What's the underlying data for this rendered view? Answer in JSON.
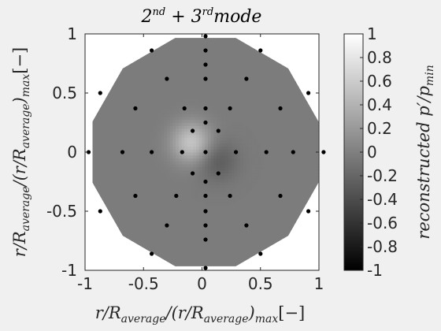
{
  "chart_data": {
    "type": "heatmap",
    "title": "2nd + 3rd mode",
    "title_parts": {
      "a": "2",
      "a_sup": "nd",
      "plus": " + ",
      "b": "3",
      "b_sup": "rd",
      "c": "mode"
    },
    "xlabel": "r/R_average/(r/R_average)_max[−]",
    "ylabel": "r/R_average/(r/R_average)_max[−]",
    "xlabel_parts": {
      "pre": "r/R",
      "sub1": "average",
      "mid": "/(r/R",
      "sub2": "average",
      "post": ")",
      "sub3": "max",
      "unit": "[−]"
    },
    "ylabel_parts": {
      "pre": "r/R",
      "sub1": "average",
      "mid": "/(r/R",
      "sub2": "average",
      "post": ")",
      "sub3": "max",
      "unit": "[−]"
    },
    "colorbar_label": "reconstructed p′/p_min",
    "colorbar_parts": {
      "pre": "reconstructed p′/p",
      "sub": "min"
    },
    "colormap": "gray",
    "xlim": [
      -1,
      1
    ],
    "ylim": [
      -1,
      1
    ],
    "clim": [
      -1,
      1
    ],
    "xticks": [
      -1,
      -0.5,
      0,
      0.5,
      1
    ],
    "xtick_labels": [
      "-1",
      "-0.5",
      "0",
      "0.5",
      "1"
    ],
    "yticks": [
      -1,
      -0.5,
      0,
      0.5,
      1
    ],
    "ytick_labels": [
      "-1",
      "-0.5",
      "0",
      "0.5",
      "1"
    ],
    "cticks": [
      -1,
      -0.8,
      -0.6,
      -0.4,
      -0.2,
      0,
      0.2,
      0.4,
      0.6,
      0.8,
      1
    ],
    "ctick_labels": [
      "-1",
      "-0.8",
      "-0.6",
      "-0.4",
      "-0.2",
      "0",
      "0.2",
      "0.4",
      "0.6",
      "0.8",
      "1"
    ],
    "field": {
      "background_level": -0.03,
      "peaks": [
        {
          "x": -0.1,
          "y": 0.07,
          "value": 0.55,
          "sigma": 0.12
        },
        {
          "x": 0.12,
          "y": -0.08,
          "value": -0.28,
          "sigma": 0.12
        }
      ]
    },
    "sensor_points": [
      [
        0.03,
        0.98
      ],
      [
        -0.43,
        0.86
      ],
      [
        0.03,
        0.86
      ],
      [
        0.5,
        0.86
      ],
      [
        0.03,
        0.74
      ],
      [
        -0.87,
        0.5
      ],
      [
        -0.3,
        0.62
      ],
      [
        0.03,
        0.62
      ],
      [
        0.38,
        0.62
      ],
      [
        0.91,
        0.5
      ],
      [
        -0.57,
        0.37
      ],
      [
        -0.15,
        0.37
      ],
      [
        0.03,
        0.37
      ],
      [
        0.24,
        0.37
      ],
      [
        0.67,
        0.37
      ],
      [
        -0.08,
        0.18
      ],
      [
        0.03,
        0.25
      ],
      [
        0.14,
        0.18
      ],
      [
        -0.97,
        0.0
      ],
      [
        -0.68,
        0.0
      ],
      [
        -0.43,
        0.0
      ],
      [
        -0.17,
        0.0
      ],
      [
        0.03,
        0.0
      ],
      [
        0.29,
        0.0
      ],
      [
        0.55,
        0.0
      ],
      [
        0.78,
        0.0
      ],
      [
        1.04,
        0.0
      ],
      [
        -0.08,
        -0.18
      ],
      [
        0.03,
        -0.25
      ],
      [
        0.14,
        -0.18
      ],
      [
        -0.57,
        -0.37
      ],
      [
        -0.22,
        -0.37
      ],
      [
        0.03,
        -0.37
      ],
      [
        0.24,
        -0.37
      ],
      [
        0.67,
        -0.37
      ],
      [
        -0.87,
        -0.5
      ],
      [
        0.03,
        -0.5
      ],
      [
        0.91,
        -0.5
      ],
      [
        -0.3,
        -0.62
      ],
      [
        0.03,
        -0.62
      ],
      [
        0.38,
        -0.62
      ],
      [
        0.03,
        -0.74
      ],
      [
        -0.43,
        -0.86
      ],
      [
        0.5,
        -0.86
      ],
      [
        0.03,
        -0.98
      ]
    ]
  }
}
